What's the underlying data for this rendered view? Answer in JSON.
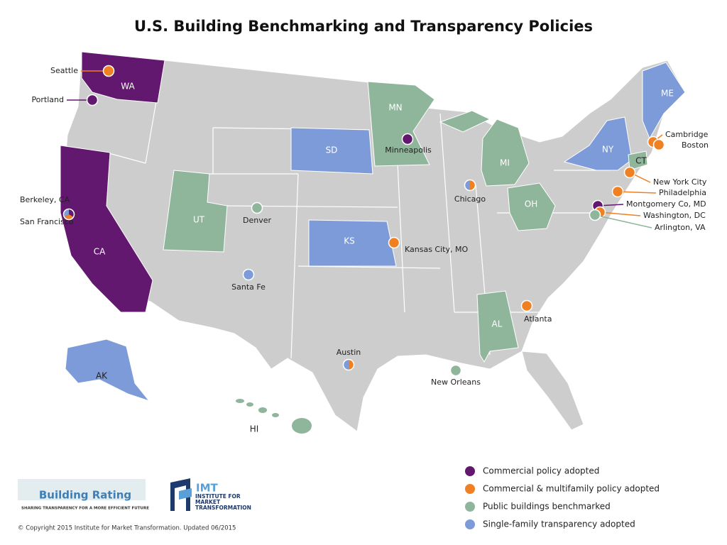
{
  "title": "U.S. Building Benchmarking and Transparency Policies",
  "base_color": "#cdcdcd",
  "states": [
    {
      "label": "WA",
      "color": "#62186e"
    },
    {
      "label": "CA",
      "color": "#62186e"
    },
    {
      "label": "UT",
      "color": "#8fb59b"
    },
    {
      "label": "SD",
      "color": "#7c9bd8"
    },
    {
      "label": "MN",
      "color": "#8fb59b"
    },
    {
      "label": "KS",
      "color": "#7c9bd8"
    },
    {
      "label": "MI",
      "color": "#8fb59b"
    },
    {
      "label": "OH",
      "color": "#8fb59b"
    },
    {
      "label": "AL",
      "color": "#8fb59b"
    },
    {
      "label": "NY",
      "color": "#7c9bd8"
    },
    {
      "label": "ME",
      "color": "#7c9bd8"
    },
    {
      "label": "CT",
      "color": "#8fb59b"
    },
    {
      "label": "AK",
      "color": "#7c9bd8"
    },
    {
      "label": "HI",
      "color": "#8fb59b"
    }
  ],
  "cities": [
    {
      "label": "Seattle",
      "colors": [
        "#ef8122"
      ]
    },
    {
      "label": "Portland",
      "colors": [
        "#62186e"
      ]
    },
    {
      "label": "Minneapolis",
      "colors": [
        "#62186e"
      ]
    },
    {
      "label": "Berkeley, CA",
      "colors": [
        "#62186e",
        "#ef8122",
        "#7c9bd8"
      ]
    },
    {
      "label": "San Francisco",
      "colors": []
    },
    {
      "label": "Denver",
      "colors": [
        "#8fb59b"
      ]
    },
    {
      "label": "Chicago",
      "colors": [
        "#ef8122",
        "#7c9bd8"
      ]
    },
    {
      "label": "Kansas City, MO",
      "colors": [
        "#ef8122"
      ]
    },
    {
      "label": "Santa Fe",
      "colors": [
        "#7c9bd8"
      ]
    },
    {
      "label": "Austin",
      "colors": [
        "#ef8122",
        "#7c9bd8"
      ]
    },
    {
      "label": "New Orleans",
      "colors": [
        "#8fb59b"
      ]
    },
    {
      "label": "Atlanta",
      "colors": [
        "#ef8122"
      ]
    },
    {
      "label": "Cambridge",
      "colors": [
        "#ef8122"
      ]
    },
    {
      "label": "Boston",
      "colors": [
        "#ef8122"
      ]
    },
    {
      "label": "New York City",
      "colors": [
        "#ef8122"
      ]
    },
    {
      "label": "Philadelphia",
      "colors": [
        "#ef8122"
      ]
    },
    {
      "label": "Montgomery Co, MD",
      "colors": [
        "#62186e"
      ]
    },
    {
      "label": "Washington, DC",
      "colors": [
        "#ef8122"
      ]
    },
    {
      "label": "Arlington, VA",
      "colors": [
        "#8fb59b"
      ]
    }
  ],
  "legend": [
    {
      "label": "Commercial policy adopted",
      "color": "#62186e"
    },
    {
      "label": "Commercial & multifamily policy adopted",
      "color": "#ef8122"
    },
    {
      "label": "Public buildings benchmarked",
      "color": "#8fb59b"
    },
    {
      "label": "Single-family transparency adopted",
      "color": "#7c9bd8"
    }
  ],
  "logos": {
    "building_rating": "Building Rating",
    "building_rating_tagline": "SHARING TRANSPARENCY FOR A MORE EFFICIENT FUTURE",
    "imt": "IMT",
    "imt_name": "INSTITUTE FOR MARKET TRANSFORMATION"
  },
  "copyright": "© Copyright 2015 Institute for Market Transformation. Updated 06/2015"
}
